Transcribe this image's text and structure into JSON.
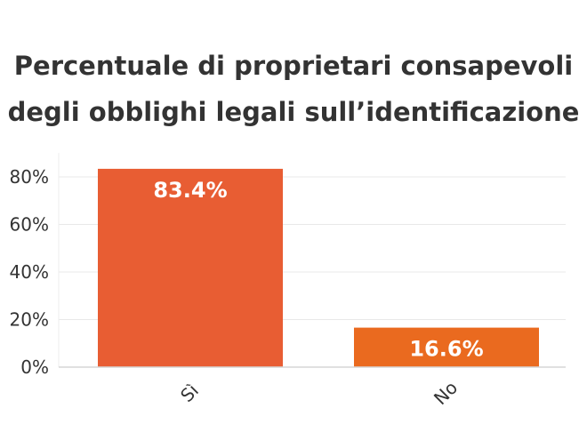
{
  "chart_data": {
    "type": "bar",
    "title_lines": [
      "Percentuale di proprietari consapevoli",
      "degli obblighi legali sull’identificazione"
    ],
    "categories": [
      "Sì",
      "No"
    ],
    "values": [
      83.4,
      16.6
    ],
    "data_labels": [
      "83.4%",
      "16.6%"
    ],
    "colors": [
      "#e85d33",
      "#ea6a1f"
    ],
    "ylim": [
      0,
      90
    ],
    "yticks": [
      0,
      20,
      40,
      60,
      80
    ],
    "ytick_labels": [
      "0%",
      "20%",
      "40%",
      "60%",
      "80%"
    ],
    "xlabel": "",
    "ylabel": "",
    "grid": true,
    "legend": "none"
  }
}
